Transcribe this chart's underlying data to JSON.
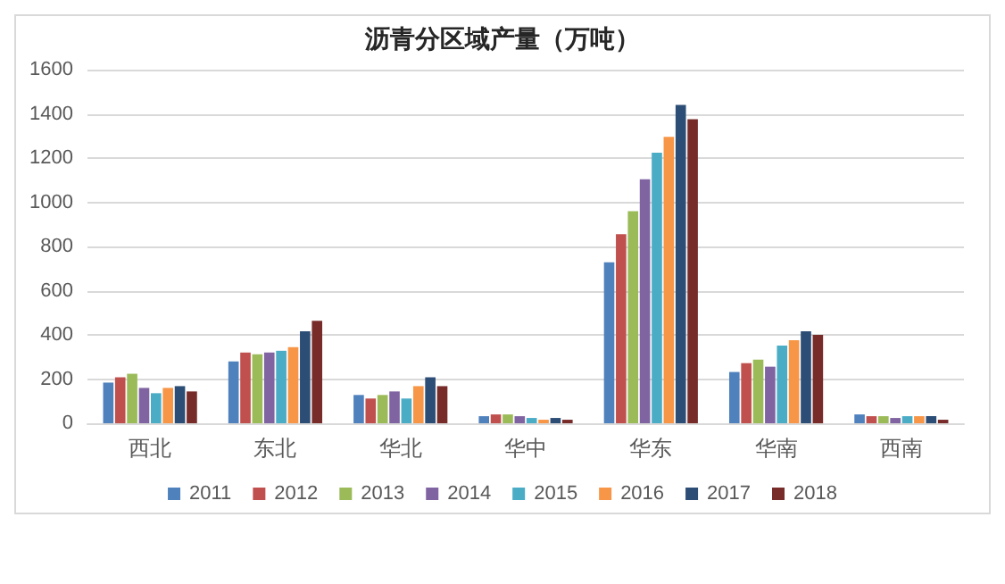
{
  "chart_data": {
    "type": "bar",
    "title": "沥青分区域产量（万吨）",
    "categories": [
      "西北",
      "东北",
      "华北",
      "华中",
      "华东",
      "华南",
      "西南"
    ],
    "series": [
      {
        "name": "2011",
        "color": "#4f81bd",
        "values": [
          184,
          280,
          128,
          32,
          728,
          232,
          40
        ]
      },
      {
        "name": "2012",
        "color": "#c0504d",
        "values": [
          208,
          320,
          112,
          40,
          856,
          272,
          32
        ]
      },
      {
        "name": "2013",
        "color": "#9bbb59",
        "values": [
          224,
          312,
          128,
          40,
          960,
          288,
          32
        ]
      },
      {
        "name": "2014",
        "color": "#8064a2",
        "values": [
          160,
          320,
          144,
          32,
          1104,
          256,
          24
        ]
      },
      {
        "name": "2015",
        "color": "#4bacc6",
        "values": [
          136,
          328,
          112,
          24,
          1224,
          352,
          32
        ]
      },
      {
        "name": "2016",
        "color": "#f79646",
        "values": [
          160,
          344,
          168,
          16,
          1296,
          376,
          32
        ]
      },
      {
        "name": "2017",
        "color": "#2c4d75",
        "values": [
          168,
          416,
          208,
          24,
          1440,
          416,
          32
        ]
      },
      {
        "name": "2018",
        "color": "#772c2a",
        "values": [
          144,
          464,
          168,
          16,
          1376,
          400,
          16
        ]
      }
    ],
    "ylim": [
      0,
      1600
    ],
    "yticks": [
      0,
      200,
      400,
      600,
      800,
      1000,
      1200,
      1400,
      1600
    ],
    "grid": "y",
    "legend": "bottom"
  }
}
